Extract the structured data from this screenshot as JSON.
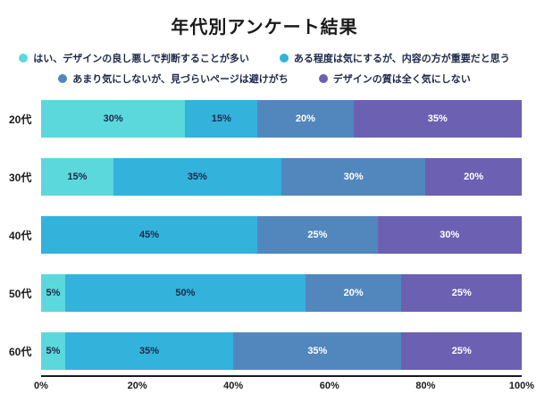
{
  "title": "年代別アンケート結果",
  "legend_items": [
    {
      "label": "はい、デザインの良し悪しで判断することが多い",
      "color": "#5BD8DC"
    },
    {
      "label": "ある程度は気にするが、内容の方が重要だと思う",
      "color": "#33B2DC"
    },
    {
      "label": "あまり気にしないが、見づらいページは避けがち",
      "color": "#5287BD"
    },
    {
      "label": "デザインの質は全く気にしない",
      "color": "#6B60B2"
    }
  ],
  "chart_data": {
    "type": "bar",
    "stacked": true,
    "orientation": "horizontal",
    "title": "年代別アンケート結果",
    "categories": [
      "20代",
      "30代",
      "40代",
      "50代",
      "60代"
    ],
    "series": [
      {
        "name": "はい、デザインの良し悪しで判断することが多い",
        "color": "#5BD8DC",
        "label_color": "#1E2A4A",
        "values": [
          30,
          15,
          0,
          5,
          5
        ]
      },
      {
        "name": "ある程度は気にするが、内容の方が重要だと思う",
        "color": "#33B2DC",
        "label_color": "#1E2A4A",
        "values": [
          15,
          35,
          45,
          50,
          35
        ]
      },
      {
        "name": "あまり気にしないが、見づらいページは避けがち",
        "color": "#5287BD",
        "label_color": "#ffffff",
        "values": [
          20,
          30,
          25,
          20,
          35
        ]
      },
      {
        "name": "デザインの質は全く気にしない",
        "color": "#6B60B2",
        "label_color": "#ffffff",
        "values": [
          35,
          20,
          30,
          25,
          25
        ]
      }
    ],
    "xlim": [
      0,
      100
    ],
    "x_ticks": [
      "0%",
      "20%",
      "40%",
      "60%",
      "80%",
      "100%"
    ],
    "value_label_format": "percent",
    "legend_position": "top",
    "grid": false
  }
}
